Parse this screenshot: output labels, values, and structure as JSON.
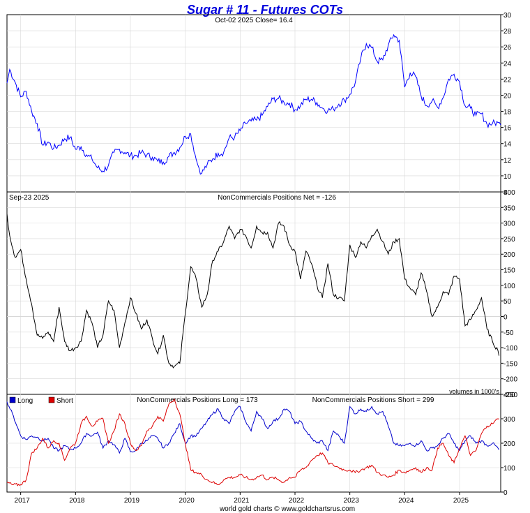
{
  "title": "Sugar # 11 - Futures COTs",
  "footer": "world gold charts © www.goldchartsrus.com",
  "colors": {
    "price": "#0000ff",
    "net": "#000000",
    "long": "#0000cc",
    "short": "#dd0000",
    "title": "#0000dd",
    "grid": "#d8d8d8"
  },
  "chart_data": [
    {
      "type": "line",
      "panel": "price",
      "header_left": "",
      "header_center": "Oct-02  2025   Close= 16.4",
      "ylim": [
        8,
        30
      ],
      "yticks": [
        "8",
        "10",
        "12",
        "14",
        "16",
        "18",
        "20",
        "22",
        "24",
        "26",
        "28",
        "30"
      ],
      "xlabels": [
        "2017",
        "2018",
        "2019",
        "2020",
        "2021",
        "2022",
        "2023",
        "2024",
        "2025"
      ],
      "x": [
        2016.75,
        2016.8,
        2016.9,
        2017.0,
        2017.1,
        2017.2,
        2017.3,
        2017.4,
        2017.5,
        2017.6,
        2017.7,
        2017.8,
        2017.9,
        2018.0,
        2018.1,
        2018.2,
        2018.3,
        2018.4,
        2018.5,
        2018.6,
        2018.7,
        2018.8,
        2018.9,
        2019.0,
        2019.1,
        2019.2,
        2019.3,
        2019.4,
        2019.5,
        2019.6,
        2019.7,
        2019.8,
        2019.9,
        2020.0,
        2020.1,
        2020.2,
        2020.25,
        2020.3,
        2020.4,
        2020.5,
        2020.6,
        2020.7,
        2020.8,
        2020.9,
        2021.0,
        2021.1,
        2021.2,
        2021.3,
        2021.4,
        2021.5,
        2021.6,
        2021.7,
        2021.8,
        2021.9,
        2022.0,
        2022.1,
        2022.2,
        2022.3,
        2022.4,
        2022.5,
        2022.6,
        2022.7,
        2022.8,
        2022.9,
        2023.0,
        2023.1,
        2023.2,
        2023.3,
        2023.4,
        2023.5,
        2023.6,
        2023.7,
        2023.8,
        2023.9,
        2024.0,
        2024.1,
        2024.2,
        2024.3,
        2024.4,
        2024.5,
        2024.6,
        2024.7,
        2024.8,
        2024.9,
        2025.0,
        2025.1,
        2025.2,
        2025.3,
        2025.4,
        2025.5,
        2025.6,
        2025.7,
        2025.75
      ],
      "values": [
        21.5,
        23.2,
        21.6,
        19.8,
        20.5,
        18.0,
        16.5,
        13.8,
        14.2,
        13.4,
        13.8,
        14.6,
        14.8,
        13.3,
        13.6,
        12.6,
        12.1,
        11.0,
        10.6,
        11.3,
        12.9,
        13.3,
        12.9,
        12.5,
        12.5,
        12.9,
        12.6,
        12.3,
        11.8,
        11.7,
        12.4,
        12.9,
        13.5,
        14.9,
        15.2,
        12.0,
        11.0,
        10.3,
        11.4,
        12.1,
        12.8,
        12.9,
        14.7,
        14.8,
        15.6,
        16.5,
        16.8,
        16.9,
        17.5,
        18.6,
        19.5,
        19.6,
        19.1,
        19.0,
        18.2,
        18.7,
        19.5,
        19.5,
        19.1,
        18.4,
        18.1,
        18.3,
        18.9,
        19.4,
        20.1,
        21.6,
        24.6,
        26.4,
        25.9,
        24.2,
        24.4,
        26.2,
        27.5,
        26.8,
        21.0,
        22.8,
        22.3,
        19.9,
        18.7,
        19.3,
        18.5,
        19.7,
        22.0,
        22.6,
        21.7,
        18.7,
        18.4,
        17.5,
        17.7,
        16.4,
        16.5,
        16.6,
        16.3
      ]
    },
    {
      "type": "line",
      "panel": "net",
      "header_left": "Sep-23  2025",
      "header_center": "NonCommercials Positions Net = -126",
      "note": "volumes in 1000's",
      "ylim": [
        -250,
        400
      ],
      "yticks": [
        "-250",
        "-200",
        "-150",
        "-100",
        "-50",
        "0",
        "50",
        "100",
        "150",
        "200",
        "250",
        "300",
        "350",
        "400"
      ],
      "x": [
        2016.75,
        2016.8,
        2016.9,
        2017.0,
        2017.1,
        2017.2,
        2017.3,
        2017.4,
        2017.5,
        2017.6,
        2017.7,
        2017.8,
        2017.9,
        2018.0,
        2018.1,
        2018.2,
        2018.3,
        2018.4,
        2018.5,
        2018.6,
        2018.7,
        2018.8,
        2018.9,
        2019.0,
        2019.1,
        2019.2,
        2019.3,
        2019.4,
        2019.5,
        2019.6,
        2019.7,
        2019.8,
        2019.9,
        2020.0,
        2020.1,
        2020.2,
        2020.3,
        2020.4,
        2020.5,
        2020.6,
        2020.7,
        2020.8,
        2020.9,
        2021.0,
        2021.1,
        2021.2,
        2021.3,
        2021.4,
        2021.5,
        2021.6,
        2021.7,
        2021.8,
        2021.9,
        2022.0,
        2022.1,
        2022.2,
        2022.3,
        2022.4,
        2022.5,
        2022.6,
        2022.7,
        2022.8,
        2022.9,
        2023.0,
        2023.1,
        2023.2,
        2023.3,
        2023.4,
        2023.5,
        2023.6,
        2023.7,
        2023.8,
        2023.9,
        2024.0,
        2024.1,
        2024.2,
        2024.3,
        2024.4,
        2024.5,
        2024.6,
        2024.7,
        2024.8,
        2024.9,
        2025.0,
        2025.1,
        2025.2,
        2025.3,
        2025.4,
        2025.5,
        2025.6,
        2025.7,
        2025.72
      ],
      "values": [
        330,
        260,
        190,
        215,
        120,
        40,
        -60,
        -70,
        -50,
        -80,
        30,
        -80,
        -110,
        -100,
        -80,
        20,
        -20,
        -100,
        -60,
        50,
        20,
        -100,
        -20,
        60,
        10,
        -40,
        -10,
        -70,
        -120,
        -60,
        -150,
        -160,
        -150,
        10,
        160,
        120,
        30,
        70,
        180,
        210,
        240,
        290,
        250,
        280,
        260,
        220,
        290,
        270,
        270,
        220,
        300,
        290,
        230,
        210,
        120,
        210,
        170,
        100,
        60,
        170,
        70,
        60,
        50,
        230,
        190,
        240,
        220,
        260,
        280,
        240,
        200,
        240,
        250,
        120,
        90,
        70,
        140,
        80,
        0,
        30,
        80,
        70,
        130,
        120,
        -30,
        -10,
        20,
        60,
        -40,
        -80,
        -110,
        -126
      ]
    },
    {
      "type": "line",
      "panel": "long_short",
      "header_center_long": "NonCommercials Positions Long = 173",
      "header_center_short": "NonCommercials Positions Short = 299",
      "ylim": [
        0,
        400
      ],
      "yticks": [
        "0",
        "100",
        "200",
        "300",
        "400"
      ],
      "x": [
        2016.75,
        2016.85,
        2017.0,
        2017.1,
        2017.2,
        2017.3,
        2017.4,
        2017.5,
        2017.6,
        2017.7,
        2017.8,
        2017.9,
        2018.0,
        2018.1,
        2018.2,
        2018.3,
        2018.4,
        2018.5,
        2018.6,
        2018.7,
        2018.8,
        2018.9,
        2019.0,
        2019.1,
        2019.2,
        2019.3,
        2019.4,
        2019.5,
        2019.6,
        2019.7,
        2019.8,
        2019.9,
        2020.0,
        2020.1,
        2020.2,
        2020.3,
        2020.4,
        2020.5,
        2020.6,
        2020.7,
        2020.8,
        2020.9,
        2021.0,
        2021.1,
        2021.2,
        2021.3,
        2021.4,
        2021.5,
        2021.6,
        2021.7,
        2021.8,
        2021.9,
        2022.0,
        2022.1,
        2022.2,
        2022.3,
        2022.4,
        2022.5,
        2022.6,
        2022.7,
        2022.8,
        2022.9,
        2023.0,
        2023.1,
        2023.2,
        2023.3,
        2023.4,
        2023.5,
        2023.6,
        2023.7,
        2023.8,
        2023.9,
        2024.0,
        2024.1,
        2024.2,
        2024.3,
        2024.4,
        2024.5,
        2024.6,
        2024.7,
        2024.8,
        2024.9,
        2025.0,
        2025.1,
        2025.2,
        2025.3,
        2025.4,
        2025.5,
        2025.6,
        2025.7,
        2025.72
      ],
      "series": [
        {
          "name": "Long",
          "values": [
            370,
            320,
            230,
            215,
            230,
            225,
            210,
            220,
            180,
            170,
            190,
            175,
            180,
            200,
            240,
            230,
            245,
            180,
            210,
            195,
            160,
            220,
            165,
            170,
            200,
            210,
            230,
            220,
            180,
            200,
            240,
            280,
            200,
            230,
            230,
            260,
            290,
            320,
            340,
            300,
            280,
            330,
            350,
            290,
            250,
            330,
            300,
            260,
            290,
            300,
            340,
            330,
            280,
            290,
            250,
            220,
            200,
            210,
            170,
            250,
            230,
            200,
            350,
            320,
            340,
            330,
            350,
            320,
            330,
            270,
            200,
            190,
            190,
            200,
            190,
            210,
            170,
            180,
            190,
            220,
            240,
            200,
            170,
            210,
            230,
            200,
            210,
            190,
            200,
            180,
            173
          ]
        },
        {
          "name": "Short",
          "values": [
            40,
            30,
            30,
            50,
            160,
            180,
            220,
            180,
            210,
            200,
            130,
            180,
            200,
            280,
            310,
            270,
            290,
            300,
            200,
            250,
            320,
            280,
            200,
            170,
            190,
            250,
            270,
            310,
            290,
            360,
            380,
            320,
            200,
            90,
            80,
            70,
            50,
            40,
            30,
            50,
            60,
            60,
            70,
            60,
            50,
            60,
            70,
            50,
            60,
            50,
            40,
            60,
            60,
            90,
            100,
            130,
            150,
            160,
            120,
            110,
            100,
            90,
            90,
            80,
            90,
            100,
            110,
            80,
            70,
            60,
            70,
            90,
            80,
            90,
            100,
            80,
            100,
            90,
            180,
            200,
            150,
            120,
            180,
            230,
            150,
            170,
            240,
            270,
            280,
            300,
            299
          ]
        }
      ]
    }
  ]
}
